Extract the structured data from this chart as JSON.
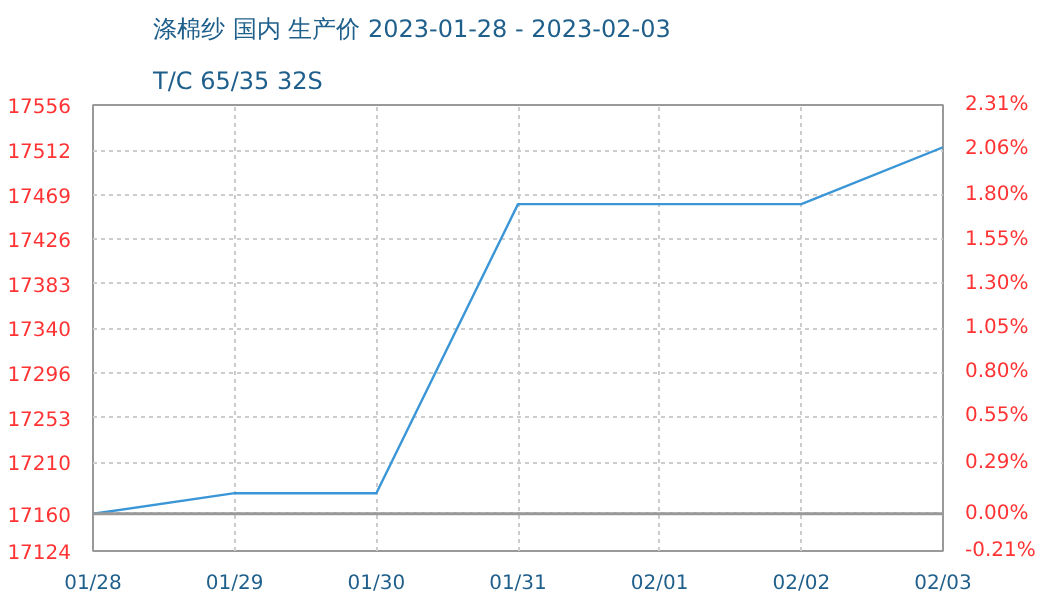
{
  "chart_data": {
    "type": "line",
    "title": "涤棉纱 国内 生产价 2023-01-28 - 2023-02-03",
    "subtitle": "T/C 65/35 32S",
    "categories": [
      "01/28",
      "01/29",
      "01/30",
      "01/31",
      "02/01",
      "02/02",
      "02/03"
    ],
    "series": [
      {
        "color": "#3a96d6",
        "values": [
          17160,
          17180,
          17180,
          17460,
          17460,
          17460,
          17515
        ]
      }
    ],
    "ylim": [
      17124,
      17556
    ],
    "yticks": [
      17124,
      17160,
      17210,
      17253,
      17296,
      17340,
      17383,
      17426,
      17469,
      17512,
      17556
    ],
    "y2lim": [
      -0.21,
      2.31
    ],
    "y2ticks": [
      {
        "value": -0.21,
        "label": "-0.21%"
      },
      {
        "value": 0,
        "label": "0.00%"
      },
      {
        "value": 0.29,
        "label": "0.29%"
      },
      {
        "value": 0.55,
        "label": "0.55%"
      },
      {
        "value": 0.8,
        "label": "0.80%"
      },
      {
        "value": 1.05,
        "label": "1.05%"
      },
      {
        "value": 1.3,
        "label": "1.30%"
      },
      {
        "value": 1.55,
        "label": "1.55%"
      },
      {
        "value": 1.8,
        "label": "1.80%"
      },
      {
        "value": 2.06,
        "label": "2.06%"
      },
      {
        "value": 2.31,
        "label": "2.31%"
      }
    ],
    "ref_lines": [
      {
        "axis": "y",
        "value": 17160,
        "color": "#999999"
      }
    ],
    "grid": true,
    "marker": "none",
    "line_style": "solid"
  }
}
